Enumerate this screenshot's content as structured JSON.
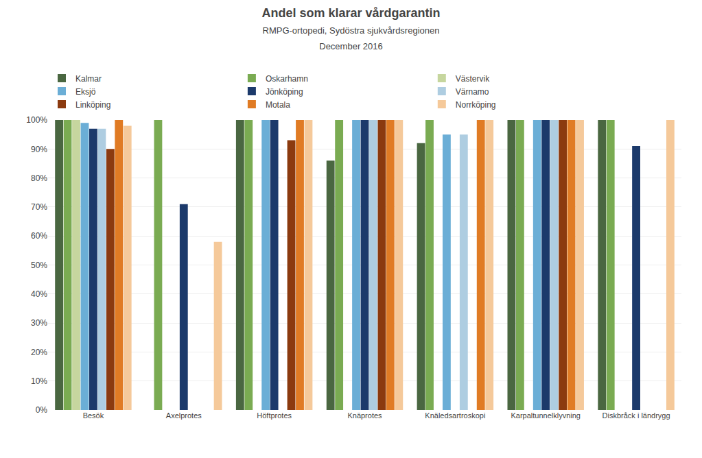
{
  "chart_data": {
    "type": "bar",
    "title": "Andel som klarar vårdgarantin",
    "subtitle": "RMPG-ortopedi, Sydöstra sjukvårdsregionen\nDecember 2016",
    "categories": [
      "Besök",
      "Axelprotes",
      "Höftprotes",
      "Knäprotes",
      "Knäledsartroskopi",
      "Karpaltunnelklyvning",
      "Diskbråck i ländrygg"
    ],
    "series": [
      {
        "name": "Kalmar",
        "color": "#4a6741",
        "values": [
          100,
          null,
          100,
          86,
          92,
          100,
          100
        ]
      },
      {
        "name": "Oskarhamn",
        "color": "#7aab52",
        "values": [
          100,
          100,
          100,
          100,
          100,
          100,
          100
        ]
      },
      {
        "name": "Västervik",
        "color": "#c6d69e",
        "values": [
          100,
          null,
          null,
          null,
          null,
          null,
          null
        ]
      },
      {
        "name": "Eksjö",
        "color": "#6baed6",
        "values": [
          99,
          null,
          100,
          100,
          95,
          100,
          null
        ]
      },
      {
        "name": "Jönköping",
        "color": "#1c3a6b",
        "values": [
          97,
          71,
          100,
          100,
          null,
          100,
          91
        ]
      },
      {
        "name": "Värnamo",
        "color": "#aecde1",
        "values": [
          97,
          null,
          null,
          100,
          95,
          100,
          null
        ]
      },
      {
        "name": "Linköping",
        "color": "#8b3a0f",
        "values": [
          90,
          null,
          93,
          100,
          null,
          100,
          null
        ]
      },
      {
        "name": "Motala",
        "color": "#e07b24",
        "values": [
          100,
          null,
          100,
          100,
          100,
          100,
          null
        ]
      },
      {
        "name": "Norrköping",
        "color": "#f5c99a",
        "values": [
          98,
          58,
          100,
          100,
          100,
          100,
          100
        ]
      }
    ],
    "ylim": [
      0,
      100
    ],
    "yticks": [
      {
        "value": 0,
        "label": "0%"
      },
      {
        "value": 10,
        "label": "10%"
      },
      {
        "value": 20,
        "label": "20%"
      },
      {
        "value": 30,
        "label": "30%"
      },
      {
        "value": 40,
        "label": "40%"
      },
      {
        "value": 50,
        "label": "50%"
      },
      {
        "value": 60,
        "label": "60%"
      },
      {
        "value": 70,
        "label": "70%"
      },
      {
        "value": 80,
        "label": "80%"
      },
      {
        "value": 90,
        "label": "90%"
      },
      {
        "value": 100,
        "label": "100%"
      }
    ],
    "grid": true,
    "legend": "top left"
  }
}
